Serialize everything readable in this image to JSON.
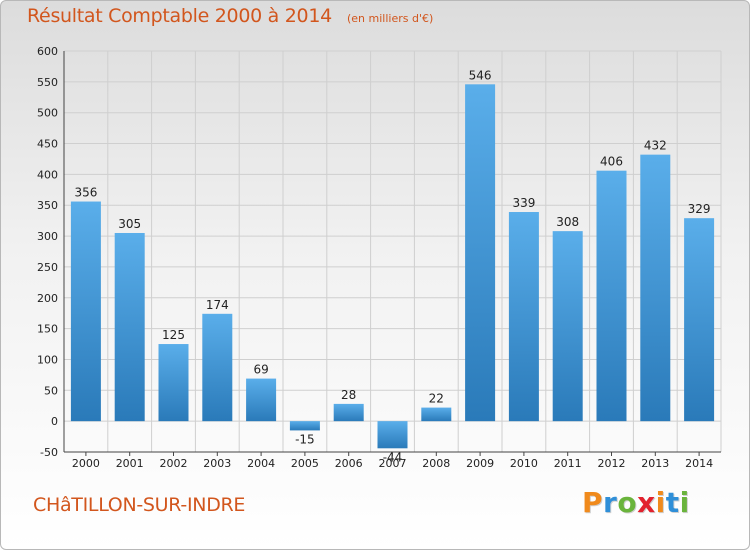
{
  "header": {
    "title": "Résultat Comptable 2000 à 2014",
    "subtitle": "(en milliers d'€)"
  },
  "footer": {
    "commune": "CHâTILLON-SUR-INDRE",
    "logo_text": "Proxiti"
  },
  "colors": {
    "title": "#d2561d",
    "bar_light": "#5aaeea",
    "bar_dark": "#2a7ab9",
    "grid": "#cfcfcf",
    "logo_letters": [
      "#f08a1c",
      "#2f8fd8",
      "#6ab43c",
      "#e2222e",
      "#f08a1c",
      "#2f8fd8",
      "#6ab43c"
    ]
  },
  "chart_data": {
    "type": "bar",
    "title": "Résultat Comptable 2000 à 2014",
    "subtitle": "(en milliers d'€)",
    "xlabel": "",
    "ylabel": "",
    "categories": [
      "2000",
      "2001",
      "2002",
      "2003",
      "2004",
      "2005",
      "2006",
      "2007",
      "2008",
      "2009",
      "2010",
      "2011",
      "2012",
      "2013",
      "2014"
    ],
    "values": [
      356,
      305,
      125,
      174,
      69,
      -15,
      28,
      -44,
      22,
      546,
      339,
      308,
      406,
      432,
      329
    ],
    "ylim": [
      -50,
      600
    ],
    "yticks": [
      -50,
      0,
      50,
      100,
      150,
      200,
      250,
      300,
      350,
      400,
      450,
      500,
      550,
      600
    ],
    "grid": true,
    "legend": "none"
  }
}
